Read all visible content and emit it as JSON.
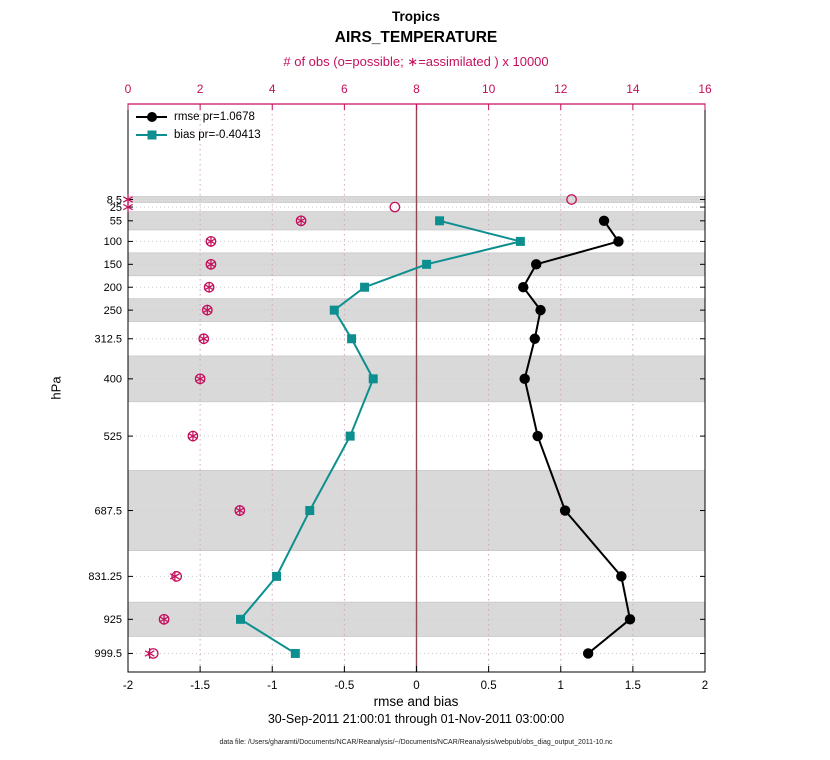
{
  "title": {
    "line1": "Tropics",
    "line2": "AIRS_TEMPERATURE"
  },
  "legend": [
    {
      "label": "rmse pr=1.0678",
      "color": "#000000",
      "marker": "filled-circle"
    },
    {
      "label": "bias pr=-0.40413",
      "color": "#0d8f8f",
      "marker": "filled-square"
    }
  ],
  "footer": {
    "timespan": "30-Sep-2011 21:00:01 through 01-Nov-2011 03:00:00",
    "datafile": "data file: /Users/gharamti/Documents/NCAR/Reanalysis/~/Documents/NCAR/Reanalysis/webpub/obs_diag_output_2011-10.nc"
  },
  "chart_data": {
    "type": "line",
    "title": "Tropics",
    "subtitle": "AIRS_TEMPERATURE",
    "orientation": "vertical-profile",
    "levels_hPa": [
      8.5,
      25,
      55,
      100,
      150,
      200,
      250,
      312.5,
      400,
      525,
      687.5,
      831.25,
      925,
      999.5
    ],
    "level_labels": [
      "8.5",
      "25",
      "55",
      "100",
      "150",
      "200",
      "250",
      "312.5",
      "400",
      "525",
      "687.5",
      "831.25",
      "925",
      "999.5"
    ],
    "series": [
      {
        "name": "rmse",
        "axis": "bottom",
        "color": "#000000",
        "marker": "filled-circle",
        "values": [
          null,
          null,
          1.3,
          1.4,
          0.83,
          0.74,
          0.86,
          0.82,
          0.75,
          0.84,
          1.03,
          1.42,
          1.48,
          1.19
        ]
      },
      {
        "name": "bias",
        "axis": "bottom",
        "color": "#0d8f8f",
        "marker": "filled-square",
        "values": [
          null,
          null,
          0.16,
          0.72,
          0.07,
          -0.36,
          -0.57,
          -0.45,
          -0.3,
          -0.46,
          -0.74,
          -0.97,
          -1.22,
          -0.84
        ]
      },
      {
        "name": "obs-possible",
        "axis": "top",
        "color": "#c4105c",
        "marker": "open-circle",
        "values": [
          12.3,
          7.4,
          4.8,
          2.3,
          2.3,
          2.25,
          2.2,
          2.1,
          2.0,
          1.8,
          3.1,
          1.35,
          1.0,
          0.7
        ]
      },
      {
        "name": "obs-assimilated",
        "axis": "top",
        "color": "#c4105c",
        "marker": "asterisk",
        "values": [
          0,
          0,
          4.8,
          2.3,
          2.3,
          2.25,
          2.2,
          2.1,
          2.0,
          1.8,
          3.1,
          1.3,
          1.0,
          0.6
        ]
      }
    ],
    "axes": {
      "bottom": {
        "label": "rmse and bias",
        "lim": [
          -2,
          2
        ],
        "ticks": [
          -2,
          -1.5,
          -1,
          -0.5,
          0,
          0.5,
          1,
          1.5,
          2
        ],
        "tick_labels": [
          "-2",
          "-1.5",
          "-1",
          "-0.5",
          "0",
          "0.5",
          "1",
          "1.5",
          "2"
        ],
        "color": "#000000"
      },
      "top": {
        "label": "# of obs (o=possible; ∗=assimilated ) x 10000",
        "lim": [
          0,
          16
        ],
        "ticks": [
          0,
          2,
          4,
          6,
          8,
          10,
          12,
          14,
          16
        ],
        "tick_labels": [
          "0",
          "2",
          "4",
          "6",
          "8",
          "10",
          "12",
          "14",
          "16"
        ],
        "color": "#c4105c"
      },
      "left": {
        "label": "hPa",
        "lim": [
          -200,
          1040
        ],
        "inverted": true
      }
    },
    "zero_line": {
      "value": 0,
      "color": "#8e4a4e"
    },
    "grid": {
      "vertical_at_top_ticks": [
        2,
        4,
        6,
        10,
        12,
        14
      ],
      "style": "dotted",
      "v_color": "#d2a8bc",
      "h_color": "#cccccc"
    },
    "gray_bands_hPa": [
      [
        2,
        15
      ],
      [
        35,
        75
      ],
      [
        125,
        175
      ],
      [
        225,
        275
      ],
      [
        350,
        450
      ],
      [
        600,
        775
      ],
      [
        887.5,
        962.5
      ]
    ],
    "band_color": "#d9d9d9",
    "band_edge_color": "#c6c6c6"
  }
}
